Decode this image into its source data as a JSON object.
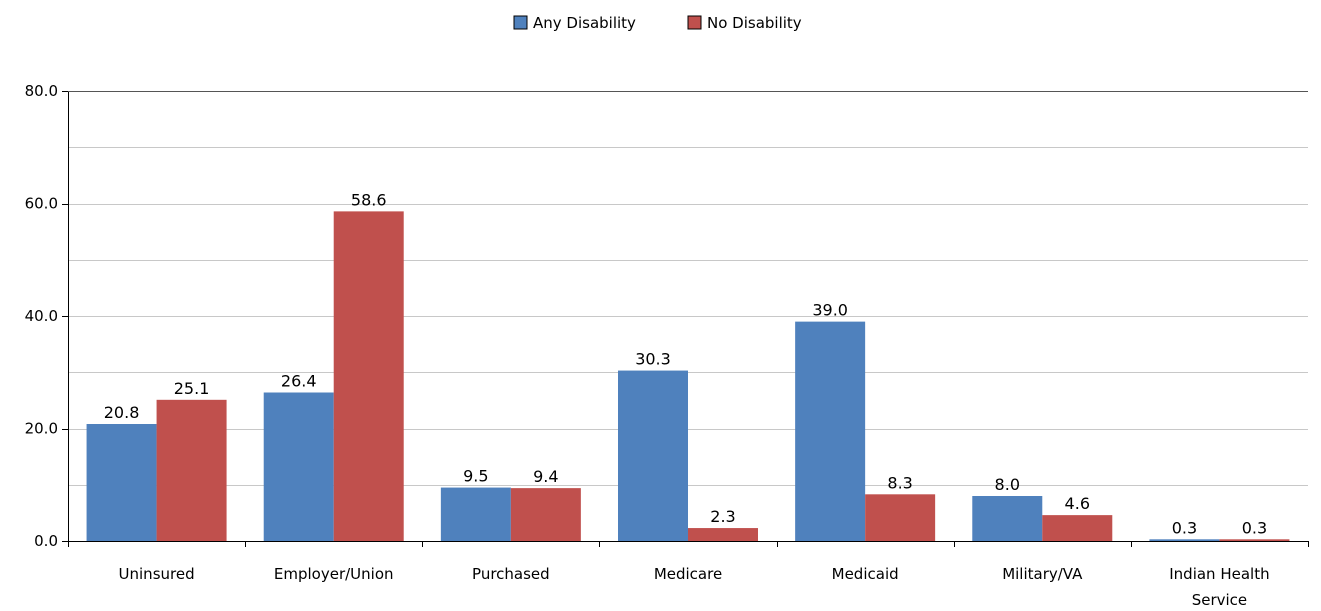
{
  "chart_data": {
    "type": "bar",
    "title": "",
    "xlabel": "",
    "ylabel": "",
    "ylim": [
      0,
      80
    ],
    "yticks": [
      "0.0",
      "20.0",
      "40.0",
      "60.0",
      "80.0"
    ],
    "grid": true,
    "legend_position": "top",
    "categories": [
      [
        "Uninsured"
      ],
      [
        "Employer/Union"
      ],
      [
        "Purchased"
      ],
      [
        "Medicare"
      ],
      [
        "Medicaid"
      ],
      [
        "Military/VA"
      ],
      [
        "Indian Health",
        "Service"
      ]
    ],
    "series": [
      {
        "name": "Any Disability",
        "color": "#4f81bd",
        "values": [
          20.8,
          26.4,
          9.5,
          30.3,
          39.0,
          8.0,
          0.3
        ],
        "labels": [
          "20.8",
          "26.4",
          "9.5",
          "30.3",
          "39.0",
          "8.0",
          "0.3"
        ]
      },
      {
        "name": "No Disability",
        "color": "#c0504d",
        "values": [
          25.1,
          58.6,
          9.4,
          2.3,
          8.3,
          4.6,
          0.3
        ],
        "labels": [
          "25.1",
          "58.6",
          "9.4",
          "2.3",
          "8.3",
          "4.6",
          "0.3"
        ]
      }
    ]
  }
}
